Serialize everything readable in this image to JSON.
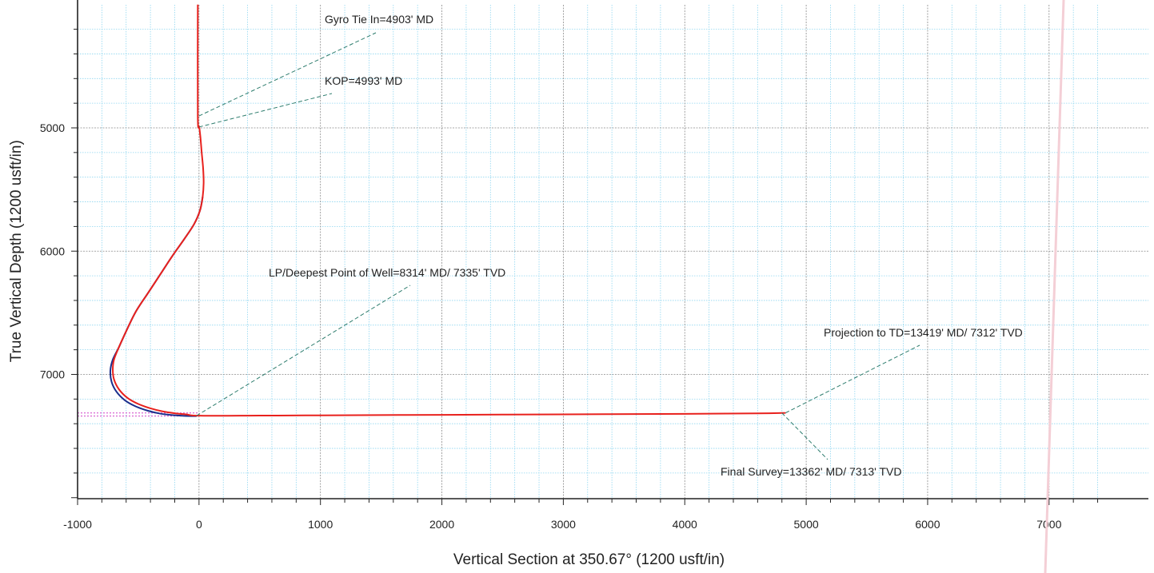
{
  "chart_data": {
    "type": "line",
    "xlabel": "Vertical Section at 350.67° (1200 usft/in)",
    "ylabel": "True Vertical Depth (1200 usft/in)",
    "xlim": [
      -1000,
      7600
    ],
    "ylim": [
      8000,
      4000
    ],
    "y_inverted": true,
    "x_ticks": [
      -1000,
      0,
      1000,
      2000,
      3000,
      4000,
      5000,
      6000,
      7000
    ],
    "x_tick_labels": [
      "-1000",
      "0",
      "1000",
      "2000",
      "3000",
      "4000",
      "5000",
      "6000",
      "7000"
    ],
    "y_ticks": [
      5000,
      6000,
      7000
    ],
    "y_tick_labels": [
      "5000",
      "6000",
      "7000"
    ],
    "grid": true,
    "legend": "none",
    "colors": {
      "actual": "#e8211d",
      "plan": "#1a2f8c",
      "grid_major": "#8a8a8a",
      "grid_minor": "#8fd6f0",
      "leader": "#2e7d6e"
    },
    "series": [
      {
        "role": "actual",
        "x": [
          -10,
          -10,
          2,
          12,
          22,
          34,
          38,
          30,
          8,
          -40,
          -120,
          -220,
          -320,
          -420,
          -520,
          -600,
          -660,
          -700,
          -710,
          -700,
          -660,
          -590,
          -500,
          -400,
          -300,
          -200,
          -100,
          0,
          500,
          1000,
          2000,
          3000,
          4000,
          4600,
          4800,
          4830
        ],
        "y": [
          4000,
          4903,
          4993,
          5080,
          5200,
          5330,
          5450,
          5560,
          5670,
          5780,
          5900,
          6040,
          6190,
          6340,
          6490,
          6650,
          6780,
          6880,
          6960,
          7040,
          7120,
          7190,
          7240,
          7275,
          7300,
          7315,
          7325,
          7335,
          7334,
          7332,
          7328,
          7324,
          7320,
          7316,
          7313,
          7312
        ]
      },
      {
        "role": "plan",
        "x": [
          30,
          8,
          -40,
          -120,
          -220,
          -320,
          -420,
          -520,
          -600,
          -660,
          -710,
          -730,
          -720,
          -680,
          -610,
          -520,
          -420,
          -320,
          -220,
          -120,
          -20
        ],
        "y": [
          5560,
          5670,
          5780,
          5900,
          6040,
          6190,
          6340,
          6490,
          6650,
          6780,
          6880,
          6970,
          7060,
          7140,
          7210,
          7260,
          7295,
          7318,
          7330,
          7336,
          7338
        ]
      }
    ],
    "annotations": [
      {
        "text": "Gyro Tie In=4903' MD",
        "point": [
          0,
          4903
        ],
        "label_anchor": [
          1400,
          4080
        ]
      },
      {
        "text": "KOP=4993' MD",
        "point": [
          0,
          4993
        ],
        "label_anchor": [
          1050,
          4580
        ]
      },
      {
        "text": "LP/Deepest Point of Well=8314' MD/ 7335' TVD",
        "point": [
          -20,
          7335
        ],
        "label_anchor": [
          1700,
          6230
        ]
      },
      {
        "text": "Projection to TD=13419' MD/ 7312' TVD",
        "point": [
          4830,
          7312
        ],
        "label_anchor": [
          6500,
          6820
        ]
      },
      {
        "text": "Final Survey=13362' MD/ 7313' TVD",
        "point": [
          4800,
          7313
        ],
        "label_anchor": [
          5050,
          7680
        ]
      }
    ]
  }
}
